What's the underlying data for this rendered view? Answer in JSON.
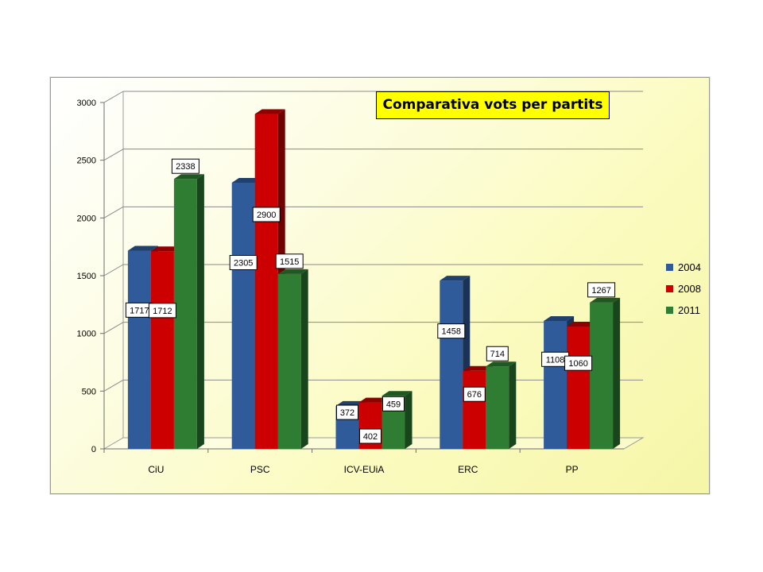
{
  "chart_data": {
    "type": "bar",
    "title": "Comparativa vots per partits",
    "categories": [
      "CiU",
      "PSC",
      "ICV-EUiA",
      "ERC",
      "PP"
    ],
    "series": [
      {
        "name": "2004",
        "color": "#2f5b9a",
        "values": [
          1717,
          2305,
          372,
          1458,
          1108
        ]
      },
      {
        "name": "2008",
        "color": "#cc0000",
        "values": [
          1712,
          2900,
          402,
          676,
          1060
        ]
      },
      {
        "name": "2011",
        "color": "#2e7d32",
        "values": [
          2338,
          1515,
          459,
          714,
          1267
        ]
      }
    ],
    "ylim": [
      0,
      3000
    ],
    "yticks": [
      0,
      500,
      1000,
      1500,
      2000,
      2500,
      3000
    ],
    "xlabel": "",
    "ylabel": "",
    "legend_position": "right",
    "grid": true,
    "three_d": true
  }
}
